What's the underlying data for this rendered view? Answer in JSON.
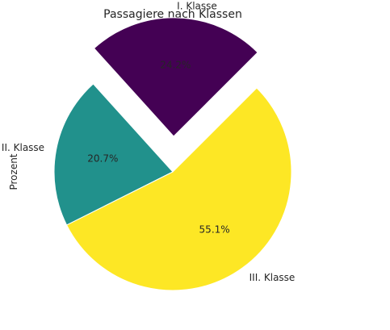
{
  "chart_data": {
    "type": "pie",
    "title": "Passagiere nach Klassen",
    "ylabel": "Prozent",
    "start_angle_deg": 45,
    "categories": [
      "I. Klasse",
      "II. Klasse",
      "III. Klasse"
    ],
    "values": [
      24.2,
      20.7,
      55.1
    ],
    "labels_pct": [
      "24.2%",
      "20.7%",
      "55.1%"
    ],
    "exploded": [
      true,
      false,
      false
    ],
    "colors": [
      "#440154",
      "#21918c",
      "#fde725"
    ]
  }
}
